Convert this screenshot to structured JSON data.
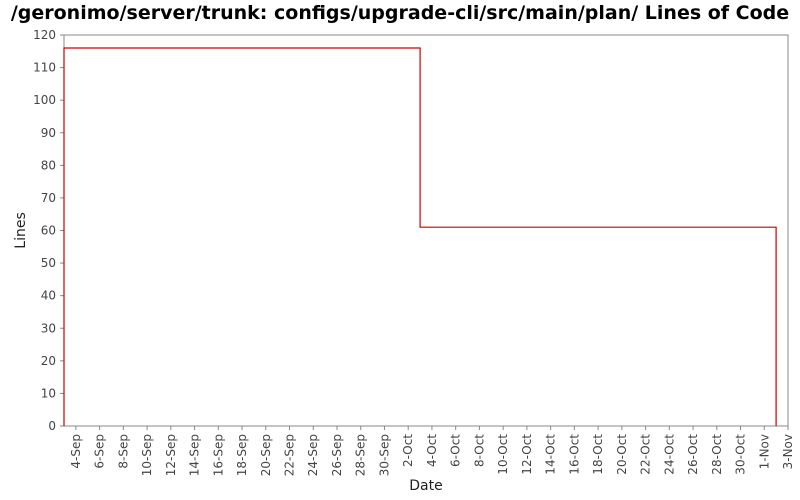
{
  "chart_data": {
    "type": "line",
    "step": true,
    "title": "/geronimo/server/trunk: configs/upgrade-cli/src/main/plan/ Lines of Code",
    "xlabel": "Date",
    "ylabel": "Lines",
    "ylim": [
      0,
      120
    ],
    "y_ticks": [
      0,
      10,
      20,
      30,
      40,
      50,
      60,
      70,
      80,
      90,
      100,
      110,
      120
    ],
    "xlim": [
      "2007-09-03",
      "2007-11-03"
    ],
    "x_tick_labels": [
      "4-Sep",
      "6-Sep",
      "8-Sep",
      "10-Sep",
      "12-Sep",
      "14-Sep",
      "16-Sep",
      "18-Sep",
      "20-Sep",
      "22-Sep",
      "24-Sep",
      "26-Sep",
      "28-Sep",
      "30-Sep",
      "2-Oct",
      "4-Oct",
      "6-Oct",
      "8-Oct",
      "10-Oct",
      "12-Oct",
      "14-Oct",
      "16-Oct",
      "18-Oct",
      "20-Oct",
      "22-Oct",
      "24-Oct",
      "26-Oct",
      "28-Oct",
      "30-Oct",
      "1-Nov",
      "3-Nov"
    ],
    "x_tick_dates": [
      "2007-09-04",
      "2007-09-06",
      "2007-09-08",
      "2007-09-10",
      "2007-09-12",
      "2007-09-14",
      "2007-09-16",
      "2007-09-18",
      "2007-09-20",
      "2007-09-22",
      "2007-09-24",
      "2007-09-26",
      "2007-09-28",
      "2007-09-30",
      "2007-10-02",
      "2007-10-04",
      "2007-10-06",
      "2007-10-08",
      "2007-10-10",
      "2007-10-12",
      "2007-10-14",
      "2007-10-16",
      "2007-10-18",
      "2007-10-20",
      "2007-10-22",
      "2007-10-24",
      "2007-10-26",
      "2007-10-28",
      "2007-10-30",
      "2007-11-01",
      "2007-11-03"
    ],
    "series": [
      {
        "color": "#cc0000",
        "points": [
          {
            "x": "2007-09-03",
            "y": 0
          },
          {
            "x": "2007-09-03",
            "y": 116
          },
          {
            "x": "2007-10-03",
            "y": 116
          },
          {
            "x": "2007-10-03",
            "y": 61
          },
          {
            "x": "2007-11-02",
            "y": 61
          },
          {
            "x": "2007-11-02",
            "y": 0
          }
        ]
      }
    ],
    "grid": false,
    "plot_background": "#ffffff",
    "axis_color": "#888888"
  }
}
